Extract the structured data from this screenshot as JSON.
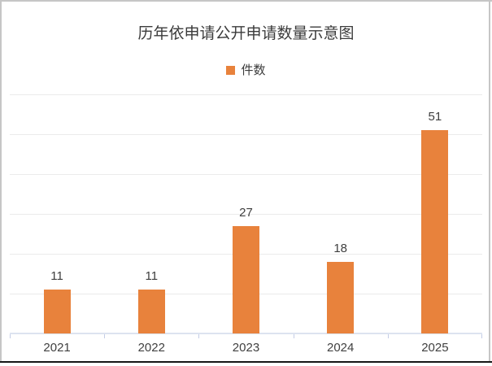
{
  "frame": {
    "background": "#ffffff",
    "border_color": "#c6c6c6",
    "bottom_line_color": "#161616"
  },
  "chart": {
    "title": "历年依申请公开申请数量示意图",
    "legend": {
      "label": "件数",
      "swatch_color": "#e8823c"
    }
  },
  "chart_data": {
    "type": "bar",
    "title": "历年依申请公开申请数量示意图",
    "categories": [
      "2021",
      "2022",
      "2023",
      "2024",
      "2025"
    ],
    "series": [
      {
        "name": "件数",
        "values": [
          11,
          11,
          27,
          18,
          51
        ]
      }
    ],
    "data_labels_visible": true,
    "y_axis_labels_visible": false,
    "ylim": [
      0,
      60
    ],
    "y_grid_step": 10,
    "grid": true,
    "legend_position": "top-center",
    "bar_color": "#e8823c",
    "gridline_color": "#ebebeb",
    "axis_line_color": "#dde3f0",
    "tick_color": "#c4cde6",
    "label_color": "#3e3e3e"
  }
}
